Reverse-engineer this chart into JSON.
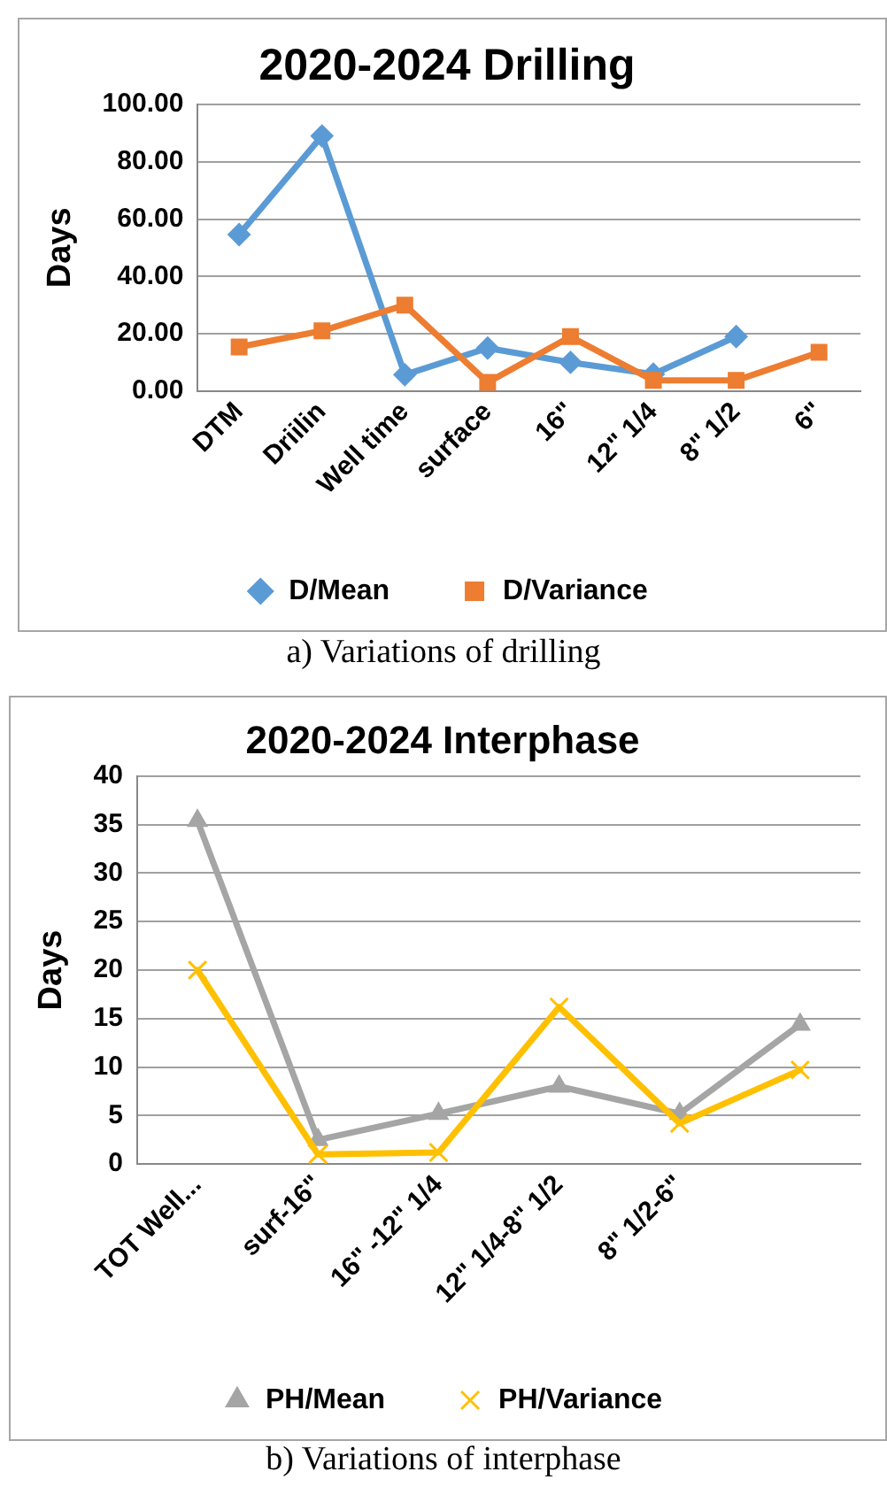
{
  "chart_data": [
    {
      "type": "line",
      "title": "2020-2024 Drilling",
      "ylabel": "Days",
      "categories": [
        "DTM",
        "Driilin",
        "Well time",
        "surface",
        "16\"",
        "12\" 1/4",
        "8\" 1/2",
        "6\""
      ],
      "series": [
        {
          "name": "D/Mean",
          "color": "#5b9bd5",
          "marker": "diamond",
          "values": [
            54.6,
            89,
            5.7,
            15,
            10,
            5.9,
            19,
            null
          ]
        },
        {
          "name": "D/Variance",
          "color": "#ed7d31",
          "marker": "square",
          "values": [
            15.4,
            21,
            30,
            3,
            19,
            3.7,
            3.7,
            13.5
          ]
        }
      ],
      "ylim": [
        0,
        100
      ],
      "yticks": [
        {
          "value": 0,
          "label": "0.00"
        },
        {
          "value": 20,
          "label": "20.00"
        },
        {
          "value": 40,
          "label": "40.00"
        },
        {
          "value": 60,
          "label": "60.00"
        },
        {
          "value": 80,
          "label": "80.00"
        },
        {
          "value": 100,
          "label": "100.00"
        }
      ],
      "grid": "y",
      "legend": "bottom",
      "line_style": "solid",
      "annotations": [
        "a) Variations of drilling"
      ]
    },
    {
      "type": "line",
      "title": "2020-2024 Interphase",
      "ylabel": "Days",
      "categories": [
        "TOT Well...",
        "surf-16\"",
        "16\" -12\" 1/4",
        "12\" 1/4-8\" 1/2",
        "8\" 1/2-6\"",
        null
      ],
      "series": [
        {
          "name": "PH/Mean",
          "color": "#a5a5a5",
          "marker": "triangle",
          "values": [
            35.4,
            2.5,
            5.2,
            8,
            5.2,
            14.4
          ]
        },
        {
          "name": "PH/Variance",
          "color": "#ffc000",
          "marker": "cross",
          "values": [
            20,
            1,
            1.2,
            16.2,
            4.2,
            9.7
          ]
        }
      ],
      "ylim": [
        0,
        40
      ],
      "yticks": [
        0,
        5,
        10,
        15,
        20,
        25,
        30,
        35,
        40
      ],
      "grid": "y",
      "legend": "bottom",
      "line_style": "solid",
      "annotations": [
        "b) Variations of interphase"
      ]
    }
  ]
}
